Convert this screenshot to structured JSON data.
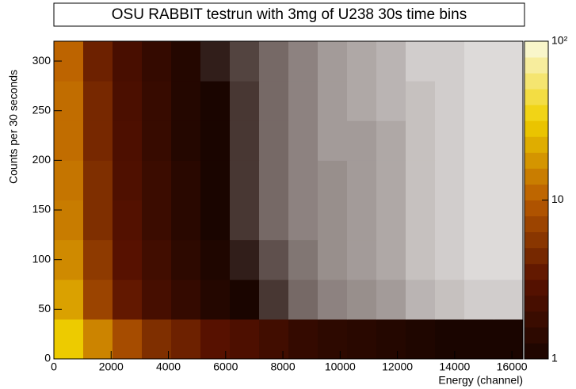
{
  "chart_data": {
    "type": "heatmap",
    "title": "OSU RABBIT testrun with 3mg of U238 30s time bins",
    "x_label": "Energy (channel)",
    "y_label": "Counts per 30 seconds",
    "xbins": [
      0,
      1024,
      2048,
      3072,
      4096,
      5120,
      6144,
      7168,
      8192,
      9216,
      10240,
      11264,
      12288,
      13312,
      14336,
      15360,
      16384
    ],
    "ybins": [
      0,
      40,
      80,
      120,
      160,
      200,
      240,
      280,
      320
    ],
    "z": [
      [
        30,
        15,
        8,
        5,
        4,
        3,
        2.5,
        2,
        1.6,
        1.4,
        1.3,
        1.2,
        1.1,
        1,
        1,
        1
      ],
      [
        20,
        7,
        3.5,
        2.2,
        1.6,
        1.2,
        1,
        0.8,
        0.6,
        0.5,
        0.45,
        0.4,
        0.3,
        0.25,
        0.2,
        0.2
      ],
      [
        16,
        6,
        3,
        2,
        1.4,
        1.1,
        0.9,
        0.7,
        0.55,
        0.45,
        0.4,
        0.35,
        0.25,
        0.2,
        0.15,
        0.15
      ],
      [
        14,
        5,
        2.8,
        1.8,
        1.3,
        1,
        0.8,
        0.6,
        0.5,
        0.45,
        0.4,
        0.35,
        0.25,
        0.2,
        0.15,
        0.15
      ],
      [
        13,
        5,
        2.6,
        1.8,
        1.3,
        1,
        0.8,
        0.6,
        0.5,
        0.45,
        0.4,
        0.35,
        0.25,
        0.2,
        0.15,
        0.15
      ],
      [
        12,
        4.5,
        2.5,
        1.7,
        1.2,
        1,
        0.8,
        0.6,
        0.5,
        0.4,
        0.4,
        0.35,
        0.25,
        0.2,
        0.15,
        0.15
      ],
      [
        12,
        4.5,
        2.4,
        1.7,
        1.2,
        1,
        0.8,
        0.6,
        0.5,
        0.4,
        0.35,
        0.3,
        0.25,
        0.2,
        0.15,
        0.15
      ],
      [
        11,
        4,
        2.3,
        1.6,
        1.2,
        0.9,
        0.75,
        0.6,
        0.5,
        0.4,
        0.35,
        0.3,
        0.2,
        0.2,
        0.15,
        0.15
      ]
    ],
    "xlim": [
      0,
      16384
    ],
    "xticks": [
      0,
      2000,
      4000,
      6000,
      8000,
      10000,
      12000,
      14000,
      16000
    ],
    "ylim": [
      0,
      320
    ],
    "yticks": [
      0,
      50,
      100,
      150,
      200,
      250,
      300
    ],
    "zlim": [
      1,
      100
    ],
    "zlog": true,
    "zticks": [
      1,
      10,
      {
        "value": 100,
        "label": "10²"
      }
    ]
  }
}
